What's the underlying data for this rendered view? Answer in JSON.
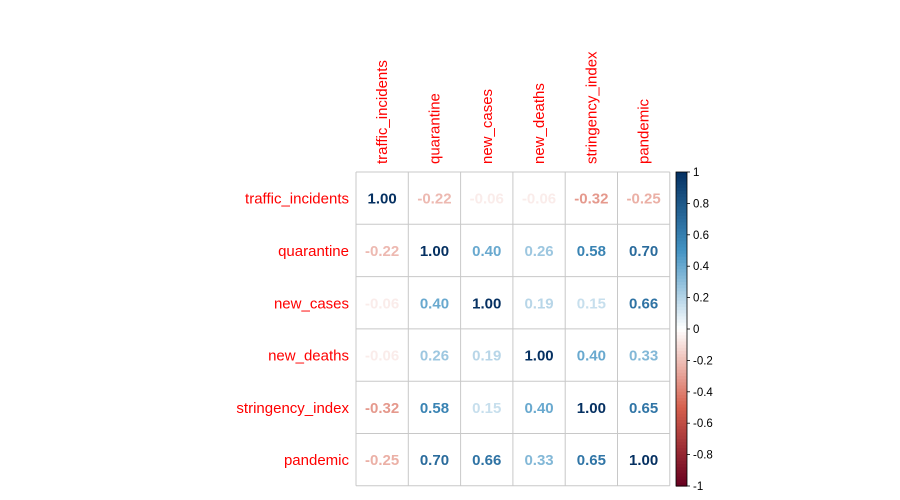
{
  "chart_data": {
    "type": "heatmap",
    "title": "",
    "variables": [
      "traffic_incidents",
      "quarantine",
      "new_cases",
      "new_deaths",
      "stringency_index",
      "pandemic"
    ],
    "matrix": [
      [
        1.0,
        -0.22,
        -0.06,
        -0.06,
        -0.32,
        -0.25
      ],
      [
        -0.22,
        1.0,
        0.4,
        0.26,
        0.58,
        0.7
      ],
      [
        -0.06,
        0.4,
        1.0,
        0.19,
        0.15,
        0.66
      ],
      [
        -0.06,
        0.26,
        0.19,
        1.0,
        0.4,
        0.33
      ],
      [
        -0.32,
        0.58,
        0.15,
        0.4,
        1.0,
        0.65
      ],
      [
        -0.25,
        0.7,
        0.66,
        0.33,
        0.65,
        1.0
      ]
    ],
    "value_range": [
      -1,
      1
    ],
    "colorbar_ticks": [
      "1",
      "0.8",
      "0.6",
      "0.4",
      "0.2",
      "0",
      "-0.2",
      "-0.4",
      "-0.6",
      "-0.8",
      "-1"
    ],
    "label_color": "#ff0000",
    "colors": {
      "negative_end": "#67001f",
      "negative_mid": "#d6604d",
      "neutral": "#ffffff",
      "positive_mid": "#4393c3",
      "positive_end": "#053061"
    }
  }
}
